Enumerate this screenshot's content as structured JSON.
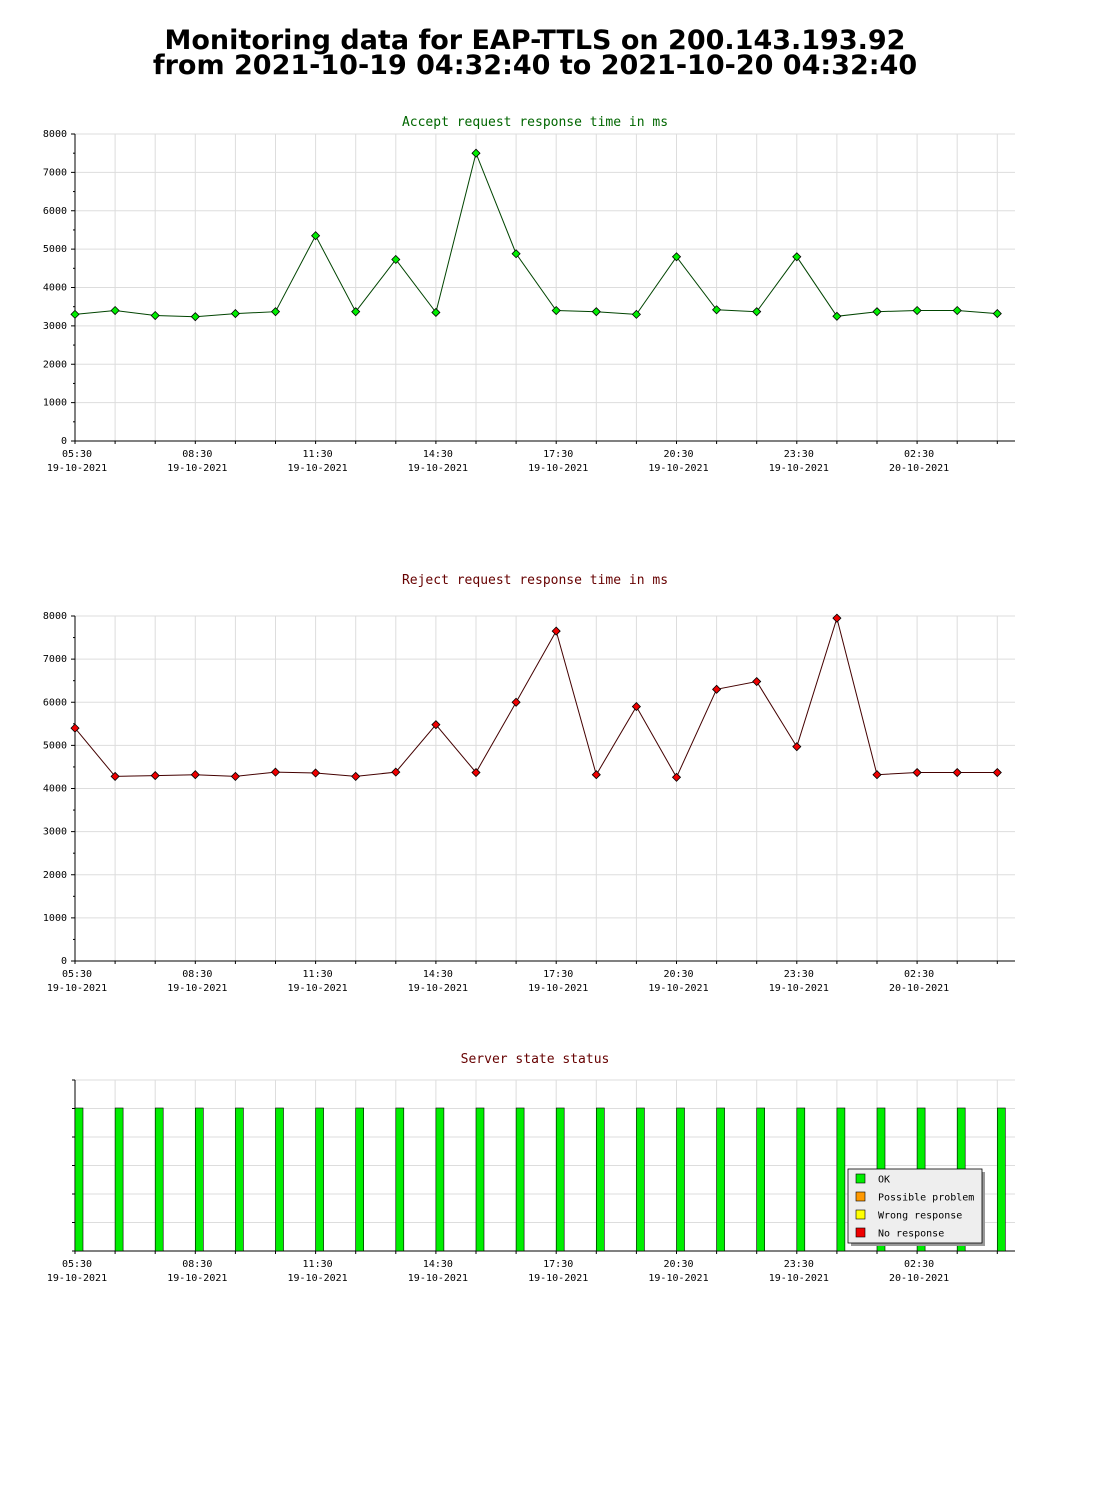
{
  "page": {
    "title_line1": "Monitoring data for EAP-TTLS on 200.143.193.92",
    "title_line2": "from 2021-10-19 04:32:40 to 2021-10-20 04:32:40"
  },
  "chart_data": [
    {
      "type": "line",
      "title": "Accept request response time in ms",
      "title_color": "#006600",
      "xlabel": "",
      "ylabel": "",
      "ylim": [
        0,
        8000
      ],
      "y_ticks": [
        0,
        1000,
        2000,
        3000,
        4000,
        5000,
        6000,
        7000,
        8000
      ],
      "x_tick_labels": [
        [
          "05:30",
          "19-10-2021"
        ],
        [
          "08:30",
          "19-10-2021"
        ],
        [
          "11:30",
          "19-10-2021"
        ],
        [
          "14:30",
          "19-10-2021"
        ],
        [
          "17:30",
          "19-10-2021"
        ],
        [
          "20:30",
          "19-10-2021"
        ],
        [
          "23:30",
          "19-10-2021"
        ],
        [
          "02:30",
          "20-10-2021"
        ]
      ],
      "grid": true,
      "series": [
        {
          "color": "#00ee00",
          "line_color": "#004400",
          "x": [
            "05:30",
            "06:30",
            "07:30",
            "08:30",
            "09:30",
            "10:30",
            "11:30",
            "12:30",
            "13:30",
            "14:30",
            "15:30",
            "16:30",
            "17:30",
            "18:30",
            "19:30",
            "20:30",
            "21:30",
            "22:30",
            "23:30",
            "00:30",
            "01:30",
            "02:30",
            "03:30",
            "04:30"
          ],
          "values": [
            3300,
            3400,
            3270,
            3240,
            3320,
            3370,
            5350,
            3370,
            4730,
            3350,
            7500,
            4880,
            3400,
            3370,
            3300,
            4800,
            3420,
            3370,
            4800,
            3250,
            3370,
            3400,
            3400,
            3320
          ]
        }
      ]
    },
    {
      "type": "line",
      "title": "Reject request response time in ms",
      "title_color": "#660000",
      "xlabel": "",
      "ylabel": "",
      "ylim": [
        0,
        8000
      ],
      "y_ticks": [
        0,
        1000,
        2000,
        3000,
        4000,
        5000,
        6000,
        7000,
        8000
      ],
      "x_tick_labels": [
        [
          "05:30",
          "19-10-2021"
        ],
        [
          "08:30",
          "19-10-2021"
        ],
        [
          "11:30",
          "19-10-2021"
        ],
        [
          "14:30",
          "19-10-2021"
        ],
        [
          "17:30",
          "19-10-2021"
        ],
        [
          "20:30",
          "19-10-2021"
        ],
        [
          "23:30",
          "19-10-2021"
        ],
        [
          "02:30",
          "20-10-2021"
        ]
      ],
      "grid": true,
      "series": [
        {
          "color": "#ee0000",
          "line_color": "#440000",
          "x": [
            "05:30",
            "06:30",
            "07:30",
            "08:30",
            "09:30",
            "10:30",
            "11:30",
            "12:30",
            "13:30",
            "14:30",
            "15:30",
            "16:30",
            "17:30",
            "18:30",
            "19:30",
            "20:30",
            "21:30",
            "22:30",
            "23:30",
            "00:30",
            "01:30",
            "02:30",
            "03:30",
            "04:30"
          ],
          "values": [
            5400,
            4280,
            4300,
            4320,
            4280,
            4380,
            4360,
            4280,
            4380,
            5480,
            4370,
            6000,
            7650,
            4320,
            5900,
            4260,
            6300,
            6480,
            4970,
            7950,
            4320,
            4370,
            4370,
            4370
          ]
        }
      ]
    },
    {
      "type": "bar",
      "title": "Server state status",
      "title_color": "#660000",
      "x_tick_labels": [
        [
          "05:30",
          "19-10-2021"
        ],
        [
          "08:30",
          "19-10-2021"
        ],
        [
          "11:30",
          "19-10-2021"
        ],
        [
          "14:30",
          "19-10-2021"
        ],
        [
          "17:30",
          "19-10-2021"
        ],
        [
          "20:30",
          "19-10-2021"
        ],
        [
          "23:30",
          "19-10-2021"
        ],
        [
          "02:30",
          "20-10-2021"
        ]
      ],
      "grid": true,
      "legend_position": "bottom-right",
      "legend": [
        {
          "label": "OK",
          "color": "#00ee00"
        },
        {
          "label": "Possible problem",
          "color": "#ff9900"
        },
        {
          "label": "Wrong response",
          "color": "#ffff00"
        },
        {
          "label": "No response",
          "color": "#ee0000"
        }
      ],
      "states": [
        "OK",
        "OK",
        "OK",
        "OK",
        "OK",
        "OK",
        "OK",
        "OK",
        "OK",
        "OK",
        "OK",
        "OK",
        "OK",
        "OK",
        "OK",
        "OK",
        "OK",
        "OK",
        "OK",
        "OK",
        "OK",
        "OK",
        "OK",
        "OK"
      ],
      "state_colors": {
        "OK": "#00ee00",
        "Possible problem": "#ff9900",
        "Wrong response": "#ffff00",
        "No response": "#ee0000"
      }
    }
  ]
}
